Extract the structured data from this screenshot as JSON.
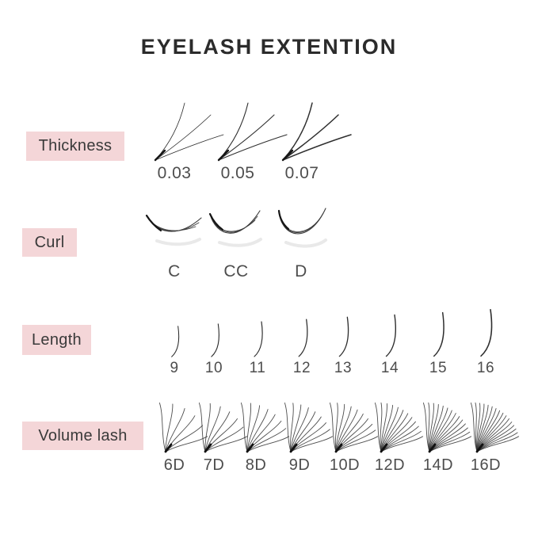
{
  "title": "EYELASH EXTENTION",
  "colors": {
    "badge_bg": "#f4d6d8",
    "badge_text": "#3a3a3a",
    "title_text": "#2b2b2b",
    "caption_text": "#4d4d4d",
    "lash_stroke": "#2e2e2e"
  },
  "rows": [
    {
      "label": "Thickness",
      "items": [
        {
          "label": "0.03"
        },
        {
          "label": "0.05"
        },
        {
          "label": "0.07"
        }
      ]
    },
    {
      "label": "Curl",
      "items": [
        {
          "label": "C"
        },
        {
          "label": "CC"
        },
        {
          "label": "D"
        }
      ]
    },
    {
      "label": "Length",
      "items": [
        {
          "label": "9"
        },
        {
          "label": "10"
        },
        {
          "label": "11"
        },
        {
          "label": "12"
        },
        {
          "label": "13"
        },
        {
          "label": "14"
        },
        {
          "label": "15"
        },
        {
          "label": "16"
        }
      ]
    },
    {
      "label": "Volume lash",
      "items": [
        {
          "label": "6D",
          "strands": 6
        },
        {
          "label": "7D",
          "strands": 7
        },
        {
          "label": "8D",
          "strands": 8
        },
        {
          "label": "9D",
          "strands": 9
        },
        {
          "label": "10D",
          "strands": 10
        },
        {
          "label": "12D",
          "strands": 12
        },
        {
          "label": "14D",
          "strands": 14
        },
        {
          "label": "16D",
          "strands": 16
        }
      ]
    }
  ]
}
